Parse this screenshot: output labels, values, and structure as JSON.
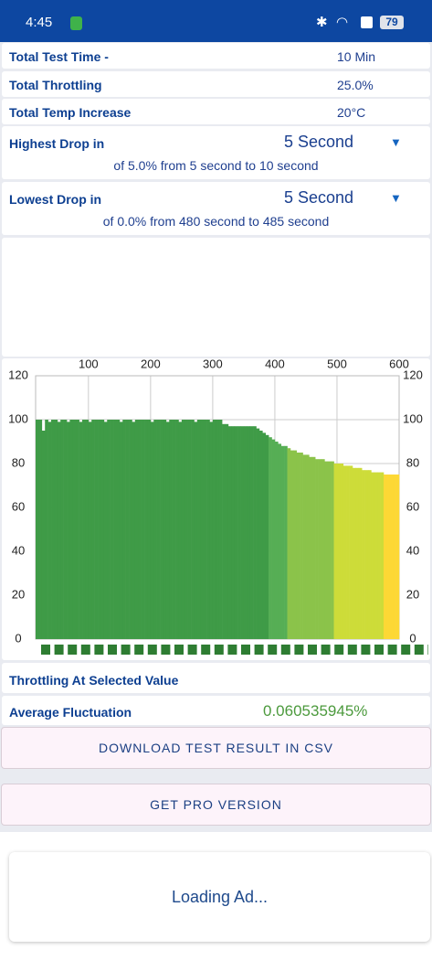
{
  "status_bar": {
    "time": "4:45",
    "battery": "79"
  },
  "summary": {
    "rows": [
      {
        "label": "Total Test Time -",
        "value": "10 Min"
      },
      {
        "label": "Total Throttling",
        "value": "25.0%"
      },
      {
        "label": "Total Temp Increase",
        "value": "20°C"
      }
    ]
  },
  "drops": [
    {
      "label": "Highest Drop in",
      "selection": "5 Second",
      "detail": "of 5.0% from 5 second to  10 second"
    },
    {
      "label": "Lowest Drop in",
      "selection": "5 Second",
      "detail": "of 0.0% from 480 second to  485 second"
    }
  ],
  "chart_data": {
    "type": "bar",
    "x": [
      15,
      20,
      25,
      30,
      35,
      40,
      45,
      50,
      55,
      60,
      65,
      70,
      75,
      80,
      85,
      90,
      95,
      100,
      105,
      110,
      115,
      120,
      125,
      130,
      135,
      140,
      145,
      150,
      155,
      160,
      165,
      170,
      175,
      180,
      185,
      190,
      195,
      200,
      205,
      210,
      215,
      220,
      225,
      230,
      235,
      240,
      245,
      250,
      255,
      260,
      265,
      270,
      275,
      280,
      285,
      290,
      295,
      300,
      305,
      310,
      315,
      320,
      325,
      330,
      335,
      340,
      345,
      350,
      355,
      360,
      365,
      370,
      375,
      380,
      385,
      390,
      395,
      400,
      405,
      410,
      415,
      420,
      425,
      430,
      435,
      440,
      445,
      450,
      455,
      460,
      465,
      470,
      475,
      480,
      485,
      490,
      495,
      500,
      505,
      510,
      515,
      520,
      525,
      530,
      535,
      540,
      545,
      550,
      555,
      560,
      565,
      570,
      575,
      580,
      585,
      590,
      595
    ],
    "values": [
      100,
      100,
      95,
      100,
      99,
      100,
      100,
      99,
      100,
      100,
      99,
      100,
      100,
      100,
      99,
      100,
      100,
      99,
      100,
      100,
      100,
      100,
      99,
      100,
      100,
      100,
      100,
      99,
      100,
      100,
      100,
      99,
      100,
      100,
      100,
      100,
      100,
      99,
      100,
      100,
      100,
      100,
      99,
      100,
      100,
      100,
      99,
      100,
      100,
      100,
      100,
      99,
      100,
      100,
      100,
      100,
      99,
      100,
      100,
      100,
      98,
      98,
      97,
      97,
      97,
      97,
      97,
      97,
      97,
      97,
      97,
      96,
      95,
      94,
      93,
      92,
      91,
      90,
      89,
      88,
      88,
      87,
      86,
      86,
      85,
      85,
      84,
      84,
      83,
      83,
      82,
      82,
      82,
      81,
      81,
      81,
      80,
      80,
      80,
      79,
      79,
      79,
      78,
      78,
      78,
      77,
      77,
      77,
      76,
      76,
      76,
      76,
      75,
      75,
      75,
      75,
      75
    ],
    "bar_width": 5,
    "color_scale": [
      {
        "min": 93,
        "color": "#3f9b47"
      },
      {
        "min": 88,
        "color": "#56ae55"
      },
      {
        "min": 81,
        "color": "#8bc34a"
      },
      {
        "min": 76,
        "color": "#cddc39"
      },
      {
        "min": 0,
        "color": "#fdd835"
      }
    ],
    "xlim": [
      15,
      600
    ],
    "xticks": [
      100,
      200,
      300,
      400,
      500,
      600
    ],
    "ylim": [
      0,
      120
    ],
    "yticks": [
      0,
      20,
      40,
      60,
      80,
      100,
      120
    ],
    "grid": true
  },
  "selected": {
    "label": "Throttling At Selected Value"
  },
  "fluctuation": {
    "label": "Average Fluctuation",
    "value": "0.060535945%"
  },
  "buttons": [
    "DOWNLOAD TEST RESULT IN CSV",
    "GET PRO VERSION"
  ],
  "ad": {
    "text": "Loading Ad..."
  }
}
